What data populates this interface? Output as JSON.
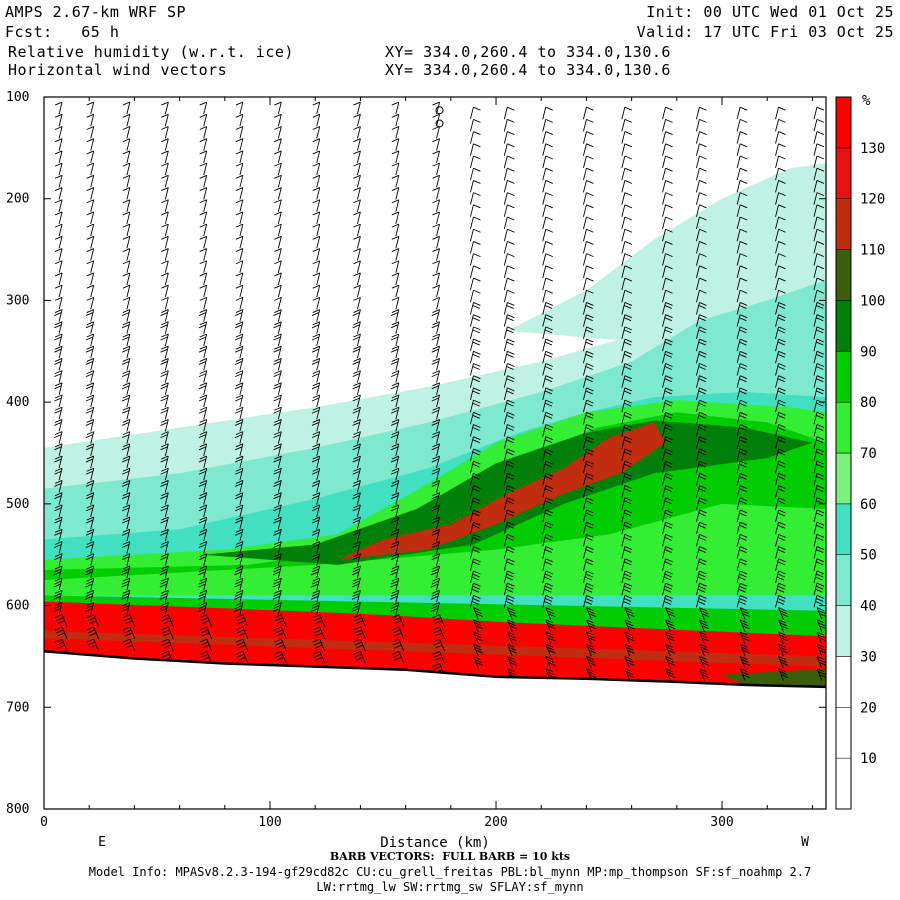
{
  "header": {
    "model": "AMPS 2.67-km WRF SP",
    "fcst_label": "Fcst:",
    "fcst_value": "65 h",
    "field1": "Relative humidity (w.r.t. ice)",
    "field2": "Horizontal wind vectors",
    "xy1": "XY= 334.0,260.4 to 334.0,130.6",
    "xy2": "XY= 334.0,260.4 to 334.0,130.6",
    "init": "Init: 00 UTC Wed 01 Oct 25",
    "valid": "Valid: 17 UTC Fri 03 Oct 25"
  },
  "footer": {
    "barb_note": "BARB VECTORS:  FULL BARB = 10 kts",
    "model_info": "Model Info: MPASv8.2.3-194-gf29cd82c CU:cu_grell_freitas PBL:bl_mynn MP:mp_thompson SF:sf_noahmp 2.7",
    "model_info2": "LW:rrtmg_lw SW:rrtmg_sw SFLAY:sf_mynn"
  },
  "chart_data": {
    "type": "heatmap",
    "title": "Relative humidity (w.r.t. ice) cross-section",
    "xlabel": "Distance (km)",
    "ylabel": "Pressure (hPa)",
    "xlim": [
      0,
      346
    ],
    "ylim": [
      800,
      100
    ],
    "x_ticks": [
      0,
      100,
      200,
      300
    ],
    "y_ticks": [
      100,
      200,
      300,
      400,
      500,
      600,
      700,
      800
    ],
    "x_end_labels": [
      "E",
      "W"
    ],
    "colorbar": {
      "unit": "%",
      "levels": [
        10,
        20,
        30,
        40,
        50,
        60,
        70,
        80,
        90,
        100,
        110,
        120,
        130
      ],
      "colors": [
        "#ffffff",
        "#ffffff",
        "#ffffff",
        "#bff2e2",
        "#7ee9cf",
        "#40e0c0",
        "#7bf27b",
        "#33ee33",
        "#00cc00",
        "#00800a",
        "#3a5e0a",
        "#c12d0f",
        "#e81010",
        "#ff0000"
      ]
    },
    "surface_pressure": [
      {
        "x": 0,
        "p": 645
      },
      {
        "x": 40,
        "p": 652
      },
      {
        "x": 80,
        "p": 657
      },
      {
        "x": 120,
        "p": 660
      },
      {
        "x": 160,
        "p": 663
      },
      {
        "x": 200,
        "p": 670
      },
      {
        "x": 240,
        "p": 672
      },
      {
        "x": 280,
        "p": 675
      },
      {
        "x": 310,
        "p": 678
      },
      {
        "x": 346,
        "p": 680
      }
    ],
    "bands": [
      {
        "name": "cloud-top-edge",
        "rh": 35,
        "pts": [
          [
            0,
            445
          ],
          [
            60,
            425
          ],
          [
            120,
            405
          ],
          [
            170,
            385
          ],
          [
            220,
            360
          ],
          [
            260,
            335
          ],
          [
            290,
            310
          ],
          [
            320,
            300
          ],
          [
            346,
            260
          ],
          [
            346,
            610
          ],
          [
            0,
            610
          ]
        ]
      },
      {
        "name": "upper-moist-plume",
        "rh": 35,
        "pts": [
          [
            205,
            330
          ],
          [
            240,
            290
          ],
          [
            270,
            240
          ],
          [
            300,
            200
          ],
          [
            330,
            170
          ],
          [
            346,
            165
          ],
          [
            346,
            330
          ],
          [
            300,
            330
          ],
          [
            260,
            340
          ]
        ]
      },
      {
        "name": "moist-layer-45",
        "rh": 45,
        "pts": [
          [
            0,
            485
          ],
          [
            60,
            470
          ],
          [
            120,
            445
          ],
          [
            170,
            420
          ],
          [
            220,
            390
          ],
          [
            260,
            360
          ],
          [
            290,
            320
          ],
          [
            320,
            300
          ],
          [
            346,
            280
          ],
          [
            346,
            610
          ],
          [
            0,
            610
          ]
        ]
      },
      {
        "name": "moist-layer-55",
        "rh": 55,
        "pts": [
          [
            0,
            535
          ],
          [
            60,
            525
          ],
          [
            120,
            495
          ],
          [
            170,
            465
          ],
          [
            210,
            430
          ],
          [
            240,
            410
          ],
          [
            270,
            395
          ],
          [
            310,
            390
          ],
          [
            346,
            395
          ],
          [
            346,
            610
          ],
          [
            0,
            610
          ]
        ]
      },
      {
        "name": "green-75",
        "rh": 75,
        "pts": [
          [
            0,
            555
          ],
          [
            80,
            545
          ],
          [
            130,
            530
          ],
          [
            170,
            480
          ],
          [
            200,
            440
          ],
          [
            240,
            410
          ],
          [
            280,
            398
          ],
          [
            330,
            405
          ],
          [
            346,
            410
          ],
          [
            346,
            580
          ],
          [
            0,
            580
          ]
        ]
      },
      {
        "name": "green-85",
        "rh": 85,
        "pts": [
          [
            0,
            565
          ],
          [
            90,
            560
          ],
          [
            140,
            545
          ],
          [
            175,
            495
          ],
          [
            210,
            455
          ],
          [
            245,
            425
          ],
          [
            280,
            410
          ],
          [
            320,
            420
          ],
          [
            346,
            440
          ],
          [
            346,
            505
          ],
          [
            300,
            500
          ],
          [
            250,
            530
          ],
          [
            200,
            545
          ],
          [
            120,
            560
          ],
          [
            0,
            575
          ]
        ]
      },
      {
        "name": "dark-green-95",
        "rh": 95,
        "pts": [
          [
            70,
            550
          ],
          [
            120,
            540
          ],
          [
            165,
            505
          ],
          [
            200,
            460
          ],
          [
            240,
            430
          ],
          [
            270,
            418
          ],
          [
            310,
            425
          ],
          [
            340,
            440
          ],
          [
            320,
            455
          ],
          [
            270,
            470
          ],
          [
            230,
            500
          ],
          [
            190,
            540
          ],
          [
            130,
            560
          ]
        ]
      },
      {
        "name": "red-core-115",
        "rh": 115,
        "pts": [
          [
            130,
            555
          ],
          [
            150,
            535
          ],
          [
            180,
            520
          ],
          [
            205,
            490
          ],
          [
            230,
            465
          ],
          [
            250,
            435
          ],
          [
            270,
            420
          ],
          [
            275,
            440
          ],
          [
            255,
            470
          ],
          [
            230,
            490
          ],
          [
            200,
            520
          ],
          [
            170,
            545
          ]
        ]
      },
      {
        "name": "low-green",
        "rh": 75,
        "pts": [
          [
            0,
            575
          ],
          [
            120,
            570
          ],
          [
            200,
            560
          ],
          [
            280,
            555
          ],
          [
            346,
            560
          ],
          [
            346,
            590
          ],
          [
            0,
            590
          ]
        ]
      },
      {
        "name": "low-moist-85",
        "rh": 85,
        "pts": [
          [
            0,
            590
          ],
          [
            346,
            605
          ],
          [
            346,
            630
          ],
          [
            0,
            600
          ]
        ]
      },
      {
        "name": "near-surface-red",
        "rh": 135,
        "pts": [
          [
            0,
            596
          ],
          [
            60,
            601
          ],
          [
            140,
            608
          ],
          [
            200,
            616
          ],
          [
            260,
            622
          ],
          [
            346,
            630
          ],
          [
            346,
            680
          ],
          [
            310,
            678
          ],
          [
            280,
            675
          ],
          [
            240,
            672
          ],
          [
            200,
            670
          ],
          [
            160,
            663
          ],
          [
            120,
            660
          ],
          [
            80,
            657
          ],
          [
            40,
            652
          ],
          [
            0,
            645
          ]
        ]
      },
      {
        "name": "near-surface-dark-red",
        "rh": 115,
        "pts": [
          [
            0,
            625
          ],
          [
            346,
            650
          ],
          [
            346,
            660
          ],
          [
            0,
            632
          ]
        ]
      },
      {
        "name": "surface-dark-green",
        "rh": 105,
        "pts": [
          [
            300,
            668
          ],
          [
            346,
            662
          ],
          [
            346,
            680
          ],
          [
            310,
            678
          ]
        ]
      }
    ],
    "wind_barb_columns_km": [
      8,
      22,
      38,
      55,
      72,
      88,
      105,
      122,
      140,
      157,
      175,
      190,
      205,
      222,
      240,
      257,
      275,
      290,
      308,
      325,
      342
    ],
    "calm_markers_km": 175
  }
}
